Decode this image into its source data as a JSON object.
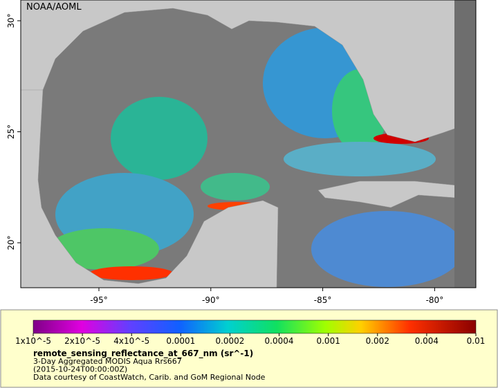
{
  "map": {
    "credit": "NOAA/AOML",
    "lat_ticks": [
      "30°",
      "25°",
      "20°"
    ],
    "lon_ticks": [
      "-95°",
      "-90°",
      "-85°",
      "-80°"
    ]
  },
  "colorbar": {
    "ticks": [
      "1x10^-5",
      "2x10^-5",
      "4x10^-5",
      "0.0001",
      "0.0002",
      "0.0004",
      "0.001",
      "0.002",
      "0.004",
      "0.01"
    ]
  },
  "caption": {
    "title": "remote_sensing_reflectance_at_667_nm (sr^-1)",
    "lines": [
      "3-Day Aggregated MODIS Aqua Rrs667",
      "(2015-10-24T00:00:00Z)",
      "Data courtesy of CoastWatch, Carib. and GoM Regional Node"
    ]
  }
}
